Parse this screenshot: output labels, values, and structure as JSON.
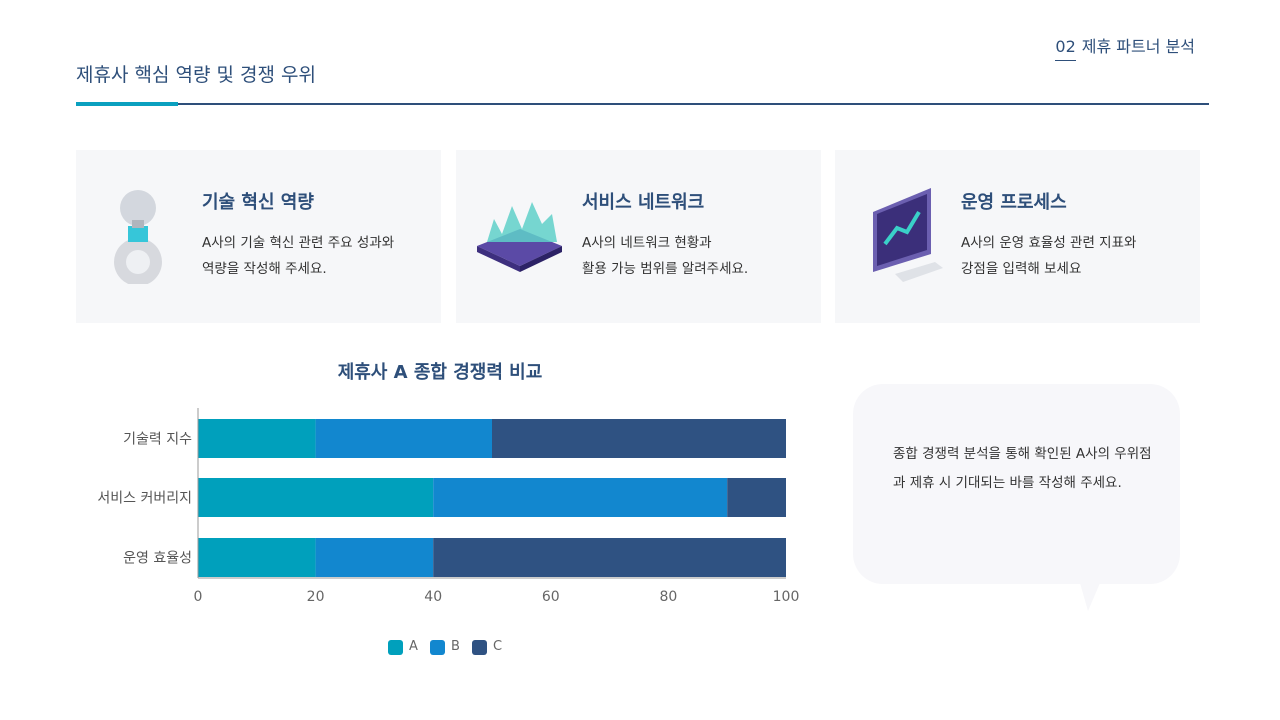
{
  "header": {
    "title": "제휴사 핵심 역량 및 경쟁 우위",
    "section_number": "02",
    "section_label": "제휴 파트너 분석"
  },
  "cards": [
    {
      "icon": "lightbulb-gear-icon",
      "title": "기술 혁신 역량",
      "text": "A사의 기술 혁신 관련 주요 성과와\n역량을 작성해 주세요."
    },
    {
      "icon": "chip-network-icon",
      "title": "서비스 네트워크",
      "text": "A사의 네트워크 현황과\n활용 가능 범위를 알려주세요."
    },
    {
      "icon": "monitor-chart-icon",
      "title": "운영 프로세스",
      "text": "A사의 운영 효율성 관련 지표와\n강점을 입력해 보세요"
    }
  ],
  "bubble": {
    "text": "종합 경쟁력 분석을 통해 확인된 A사의 우위점과 제휴 시 기대되는 바를 작성해 주세요."
  },
  "chart_data": {
    "type": "bar",
    "orientation": "horizontal",
    "stacked": true,
    "title": "제휴사 A 종합 경쟁력 비교",
    "categories": [
      "기술력 지수",
      "서비스 커버리지",
      "운영 효율성"
    ],
    "series": [
      {
        "name": "A",
        "values": [
          20,
          40,
          20
        ],
        "color": "#00a0bc"
      },
      {
        "name": "B",
        "values": [
          30,
          50,
          20
        ],
        "color": "#1287cf"
      },
      {
        "name": "C",
        "values": [
          50,
          10,
          60
        ],
        "color": "#2f5282"
      }
    ],
    "xlim": [
      0,
      100
    ],
    "xticks": [
      "0",
      "20",
      "40",
      "60",
      "80",
      "100"
    ],
    "legend": "bottom",
    "grid": false
  }
}
